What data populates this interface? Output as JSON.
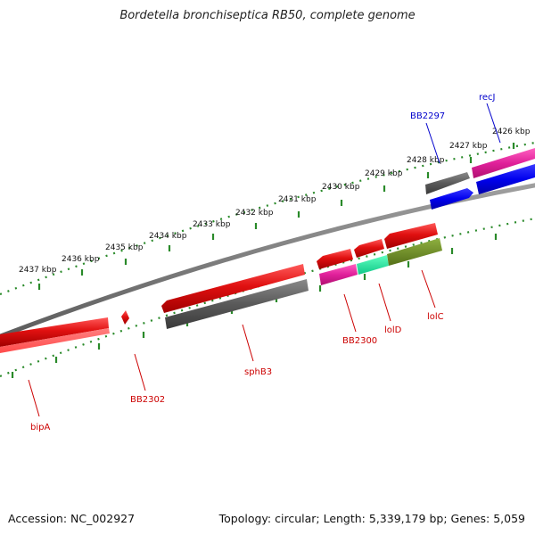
{
  "title": "Bordetella bronchiseptica RB50, complete genome",
  "footer": {
    "accession": "Accession: NC_002927",
    "summary": "Topology: circular; Length: 5,339,179 bp; Genes: 5,059"
  },
  "ticks": [
    "2437 kbp",
    "2436 kbp",
    "2435 kbp",
    "2434 kbp",
    "2433 kbp",
    "2432 kbp",
    "2431 kbp",
    "2430 kbp",
    "2429 kbp",
    "2428 kbp",
    "2427 kbp",
    "2426 kbp"
  ],
  "genes": {
    "recJ": "recJ",
    "BB2297": "BB2297",
    "BB2300": "BB2300",
    "lolD": "lolD",
    "lolC": "lolC",
    "sphB3": "sphB3",
    "BB2302": "BB2302",
    "bipA": "bipA"
  },
  "colors": {
    "backbone": "#7a7a7a",
    "tick": "#2a8a2a",
    "forward_gene": "#e01010",
    "reverse_gene": "#0000ee",
    "pseudo": "#666666",
    "magenta": "#e0209a",
    "green_cyan": "#20e8a0",
    "olive": "#6b8e23",
    "red_label": "#cc0000",
    "blue_label": "#0000cc"
  }
}
